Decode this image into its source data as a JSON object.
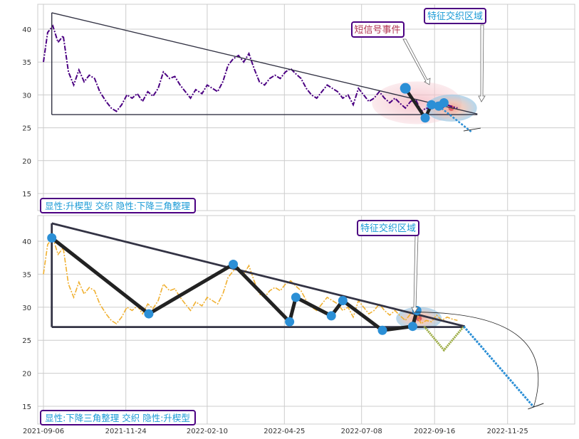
{
  "colors": {
    "top_price": "#4b0082",
    "bottom_price": "#f0b030",
    "pattern_line": "#333344",
    "point": "#2b8fd6",
    "event_zone": "#f6c9cf",
    "feature_zone": "#9ed0ee",
    "label_border": "#4b0082",
    "label_text": "#1a9ad6",
    "event_label_text": "#b03050"
  },
  "chart_data": [
    {
      "type": "line",
      "panel": "top",
      "ylim": [
        12.5,
        44
      ],
      "yticks": [
        15,
        20,
        25,
        30,
        35,
        40
      ],
      "ytick_labels": [
        "15",
        "20",
        "25",
        "30",
        "35",
        "40"
      ],
      "grid": true,
      "price_series": {
        "x": [
          "2021-09-06",
          "2021-09-10",
          "2021-09-15",
          "2021-09-20",
          "2021-09-25",
          "2021-09-30",
          "2021-10-05",
          "2021-10-10",
          "2021-10-15",
          "2021-10-20",
          "2021-10-25",
          "2021-10-30",
          "2021-11-05",
          "2021-11-10",
          "2021-11-15",
          "2021-11-20",
          "2021-11-25",
          "2021-11-30",
          "2021-12-05",
          "2021-12-10",
          "2021-12-15",
          "2021-12-20",
          "2021-12-25",
          "2021-12-30",
          "2022-01-05",
          "2022-01-10",
          "2022-01-15",
          "2022-01-20",
          "2022-01-25",
          "2022-01-30",
          "2022-02-05",
          "2022-02-10",
          "2022-02-15",
          "2022-02-20",
          "2022-02-25",
          "2022-03-02",
          "2022-03-07",
          "2022-03-12",
          "2022-03-17",
          "2022-03-22",
          "2022-03-27",
          "2022-04-01",
          "2022-04-06",
          "2022-04-11",
          "2022-04-16",
          "2022-04-21",
          "2022-04-26",
          "2022-05-01",
          "2022-05-06",
          "2022-05-11",
          "2022-05-16",
          "2022-05-21",
          "2022-05-26",
          "2022-05-31",
          "2022-06-05",
          "2022-06-10",
          "2022-06-15",
          "2022-06-20",
          "2022-06-25",
          "2022-06-30",
          "2022-07-05",
          "2022-07-10",
          "2022-07-15",
          "2022-07-20",
          "2022-07-25",
          "2022-07-30",
          "2022-08-04",
          "2022-08-09",
          "2022-08-14",
          "2022-08-19",
          "2022-08-24",
          "2022-08-29",
          "2022-09-03",
          "2022-09-08",
          "2022-09-13",
          "2022-09-18",
          "2022-09-23",
          "2022-09-28",
          "2022-10-03",
          "2022-10-08"
        ],
        "values": [
          35.0,
          39.5,
          40.5,
          38.0,
          39.0,
          33.5,
          31.5,
          33.8,
          32.0,
          33.0,
          32.5,
          30.5,
          29.0,
          28.0,
          27.5,
          28.5,
          30.0,
          29.5,
          30.2,
          29.0,
          30.5,
          29.8,
          31.0,
          33.5,
          32.5,
          32.8,
          31.5,
          30.5,
          29.5,
          30.8,
          30.2,
          31.5,
          31.0,
          30.5,
          32.0,
          34.5,
          35.5,
          36.0,
          35.0,
          36.3,
          34.0,
          32.0,
          31.5,
          32.5,
          33.0,
          32.5,
          33.5,
          34.0,
          33.2,
          32.5,
          31.0,
          30.0,
          29.5,
          30.5,
          31.5,
          31.0,
          30.5,
          29.5,
          30.0,
          28.5,
          31.0,
          30.0,
          29.0,
          29.5,
          30.5,
          29.5,
          28.8,
          29.5,
          28.7,
          28.0,
          29.0,
          29.3,
          27.5,
          28.0,
          27.8,
          28.8,
          28.0,
          28.5,
          28.2,
          28.0
        ]
      },
      "pattern_lines": [
        {
          "x": [
            "2021-09-14",
            "2022-10-27"
          ],
          "y": [
            42.5,
            27.1
          ]
        },
        {
          "x": [
            "2021-09-14",
            "2022-10-27"
          ],
          "y": [
            27.0,
            27.0
          ]
        },
        {
          "x": [
            "2021-09-14",
            "2021-09-14"
          ],
          "y": [
            42.5,
            27.0
          ]
        }
      ],
      "pattern_points": {
        "x": [
          "2022-08-19",
          "2022-09-07",
          "2022-09-13",
          "2022-09-20",
          "2022-09-25"
        ],
        "y": [
          31.0,
          26.5,
          28.5,
          28.3,
          28.8
        ]
      },
      "projection": {
        "x": [
          "2022-09-20",
          "2022-10-22"
        ],
        "y": [
          28.3,
          24.3
        ]
      },
      "event_zone": {
        "x": "2022-08-30",
        "y": 28.8
      },
      "feature_zone": {
        "x": "2022-10-02",
        "y": 28.0
      },
      "annotations": {
        "event": "短信号事件",
        "feature": "特征交织区域"
      },
      "caption": "显性:升楔型 交织 隐性:下降三角整理"
    },
    {
      "type": "line",
      "panel": "bottom",
      "ylim": [
        12.5,
        44
      ],
      "yticks": [
        15,
        20,
        25,
        30,
        35,
        40
      ],
      "ytick_labels": [
        "15",
        "20",
        "25",
        "30",
        "35",
        "40"
      ],
      "xticks": [
        "2021-09-06",
        "2021-11-24",
        "2022-02-10",
        "2022-04-25",
        "2022-07-08",
        "2022-09-16",
        "2022-11-25"
      ],
      "xtick_labels": [
        "2021-09-06",
        "2021-11-24",
        "2022-02-10",
        "2022-04-25",
        "2022-07-08",
        "2022-09-16",
        "2022-11-25"
      ],
      "grid": true,
      "pattern_lines": [
        {
          "x": [
            "2021-09-14",
            "2022-10-15"
          ],
          "y": [
            42.7,
            27.1
          ]
        },
        {
          "x": [
            "2021-09-14",
            "2022-10-15"
          ],
          "y": [
            27.0,
            27.0
          ]
        },
        {
          "x": [
            "2021-09-14",
            "2021-09-14"
          ],
          "y": [
            42.7,
            27.0
          ]
        }
      ],
      "pattern_points": {
        "x": [
          "2021-09-14",
          "2021-12-16",
          "2022-03-07",
          "2022-04-30",
          "2022-05-06",
          "2022-06-09",
          "2022-06-20",
          "2022-07-28",
          "2022-08-26",
          "2022-08-30"
        ],
        "y": [
          40.5,
          29.0,
          36.5,
          27.8,
          31.5,
          28.7,
          31.0,
          26.5,
          27.1,
          29.5
        ]
      },
      "projection_up": {
        "x": [
          "2022-09-06",
          "2022-09-25",
          "2022-10-14"
        ],
        "y": [
          27.1,
          23.5,
          27.1
        ]
      },
      "projection_down": {
        "x": [
          "2022-10-14",
          "2022-12-20"
        ],
        "y": [
          27.1,
          14.9
        ]
      },
      "feature_zone": {
        "x": "2022-09-01",
        "y": 28.3
      },
      "annotations": {
        "feature": "特征交织区域"
      },
      "caption": "显性:下降三角整理 交织 隐性:升楔型"
    }
  ]
}
